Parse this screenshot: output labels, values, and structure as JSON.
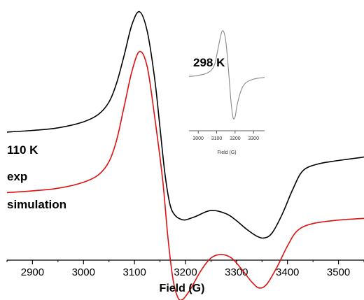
{
  "chart_data": [
    {
      "type": "line",
      "title": "",
      "xlabel": "Field (G)",
      "ylabel": "",
      "xlim": [
        2850,
        3550
      ],
      "xticks": [
        2900,
        3000,
        3100,
        3200,
        3300,
        3400,
        3500
      ],
      "annotations": {
        "temperature": "110 K",
        "exp_label": "exp",
        "sim_label": "simulation"
      },
      "colors": {
        "exp": "#000000",
        "simulation": "#dd1111"
      },
      "series": [
        {
          "name": "exp",
          "x": [
            2850,
            2900,
            2950,
            3000,
            3030,
            3050,
            3065,
            3080,
            3095,
            3110,
            3125,
            3140,
            3150,
            3160,
            3170,
            3180,
            3190,
            3200,
            3220,
            3250,
            3280,
            3300,
            3320,
            3340,
            3355,
            3370,
            3390,
            3410,
            3430,
            3460,
            3500,
            3550
          ],
          "y": [
            0.35,
            0.37,
            0.4,
            0.47,
            0.56,
            0.7,
            0.92,
            1.25,
            1.6,
            1.75,
            1.52,
            0.95,
            0.4,
            -0.15,
            -0.5,
            -0.62,
            -0.66,
            -0.67,
            -0.63,
            -0.56,
            -0.6,
            -0.68,
            -0.78,
            -0.86,
            -0.88,
            -0.82,
            -0.6,
            -0.32,
            -0.1,
            -0.02,
            0.02,
            0.06
          ]
        },
        {
          "name": "simulation",
          "x": [
            2850,
            2900,
            2950,
            3000,
            3030,
            3050,
            3065,
            3080,
            3095,
            3110,
            3125,
            3140,
            3155,
            3165,
            3175,
            3185,
            3195,
            3210,
            3230,
            3250,
            3270,
            3290,
            3310,
            3330,
            3345,
            3360,
            3380,
            3400,
            3420,
            3450,
            3500,
            3550
          ],
          "y": [
            -0.06,
            -0.04,
            -0.01,
            0.06,
            0.15,
            0.3,
            0.55,
            0.95,
            1.35,
            1.58,
            1.4,
            0.8,
            0.1,
            -0.55,
            -1.05,
            -1.28,
            -1.3,
            -1.18,
            -0.97,
            -0.82,
            -0.78,
            -0.82,
            -0.95,
            -1.1,
            -1.17,
            -1.12,
            -0.92,
            -0.68,
            -0.5,
            -0.42,
            -0.38,
            -0.36
          ]
        }
      ]
    },
    {
      "type": "line",
      "title": "",
      "xlabel": "Field (G)",
      "ylabel": "",
      "xlim": [
        2950,
        3360
      ],
      "xticks": [
        3000,
        3100,
        3200,
        3300
      ],
      "annotations": {
        "temperature": "298 K"
      },
      "colors": {
        "line": "#888888"
      },
      "series": [
        {
          "x": [
            2950,
            2980,
            3010,
            3040,
            3070,
            3090,
            3105,
            3120,
            3130,
            3140,
            3150,
            3160,
            3170,
            3180,
            3190,
            3200,
            3210,
            3225,
            3240,
            3260,
            3290,
            3320,
            3360
          ],
          "y": [
            0.01,
            0.02,
            0.04,
            0.07,
            0.14,
            0.28,
            0.55,
            0.85,
            0.98,
            0.95,
            0.75,
            0.35,
            -0.15,
            -0.62,
            -0.88,
            -0.85,
            -0.62,
            -0.38,
            -0.22,
            -0.12,
            -0.06,
            -0.03,
            -0.01
          ]
        }
      ]
    }
  ]
}
